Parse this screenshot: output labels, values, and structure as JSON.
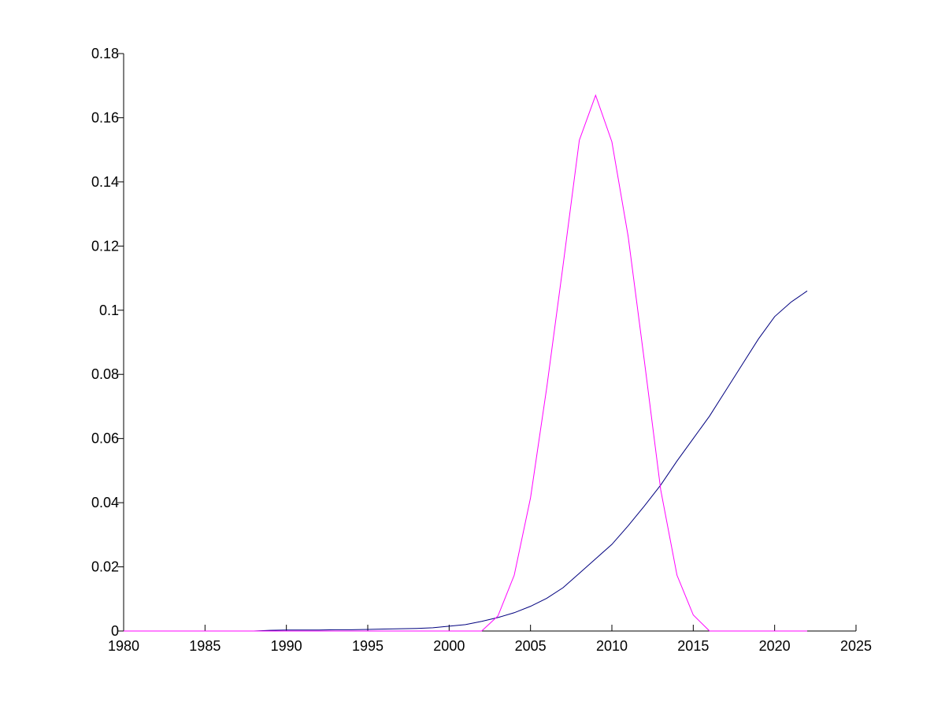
{
  "chart_data": {
    "type": "line",
    "x": [
      1980,
      1981,
      1982,
      1983,
      1984,
      1985,
      1986,
      1987,
      1988,
      1989,
      1990,
      1991,
      1992,
      1993,
      1994,
      1995,
      1996,
      1997,
      1998,
      1999,
      2000,
      2001,
      2002,
      2003,
      2004,
      2005,
      2006,
      2007,
      2008,
      2009,
      2010,
      2011,
      2012,
      2013,
      2014,
      2015,
      2016,
      2017,
      2018,
      2019,
      2020,
      2021,
      2022
    ],
    "series": [
      {
        "color": "#00007f",
        "values": [
          0,
          0,
          0,
          0,
          0,
          0,
          0,
          0,
          0,
          0.0002,
          0.0003,
          0.0003,
          0.0003,
          0.0004,
          0.0004,
          0.0005,
          0.0006,
          0.0007,
          0.0008,
          0.001,
          0.0015,
          0.002,
          0.003,
          0.0042,
          0.0057,
          0.0077,
          0.0102,
          0.0135,
          0.018,
          0.0225,
          0.027,
          0.0328,
          0.039,
          0.0455,
          0.053,
          0.06,
          0.067,
          0.075,
          0.083,
          0.091,
          0.098,
          0.1025,
          0.106
        ]
      },
      {
        "color": "#ff00ff",
        "values": [
          0,
          0,
          0,
          0,
          0,
          0,
          0,
          0,
          0,
          0,
          0,
          0,
          0,
          0,
          0,
          0,
          0,
          0,
          0,
          0,
          0,
          0,
          0,
          0.0047,
          0.0174,
          0.0415,
          0.076,
          0.114,
          0.153,
          0.167,
          0.1525,
          0.123,
          0.084,
          0.044,
          0.0174,
          0.005,
          0,
          0,
          0,
          0,
          0,
          0,
          0
        ]
      }
    ],
    "xlim": [
      1980,
      2025
    ],
    "xticks": [
      1980,
      1985,
      1990,
      1995,
      2000,
      2005,
      2010,
      2015,
      2020,
      2025
    ],
    "ylim": [
      0,
      0.18
    ],
    "yticks": [
      0,
      0.02,
      0.04,
      0.06,
      0.08,
      0.1,
      0.12,
      0.14,
      0.16,
      0.18
    ]
  }
}
